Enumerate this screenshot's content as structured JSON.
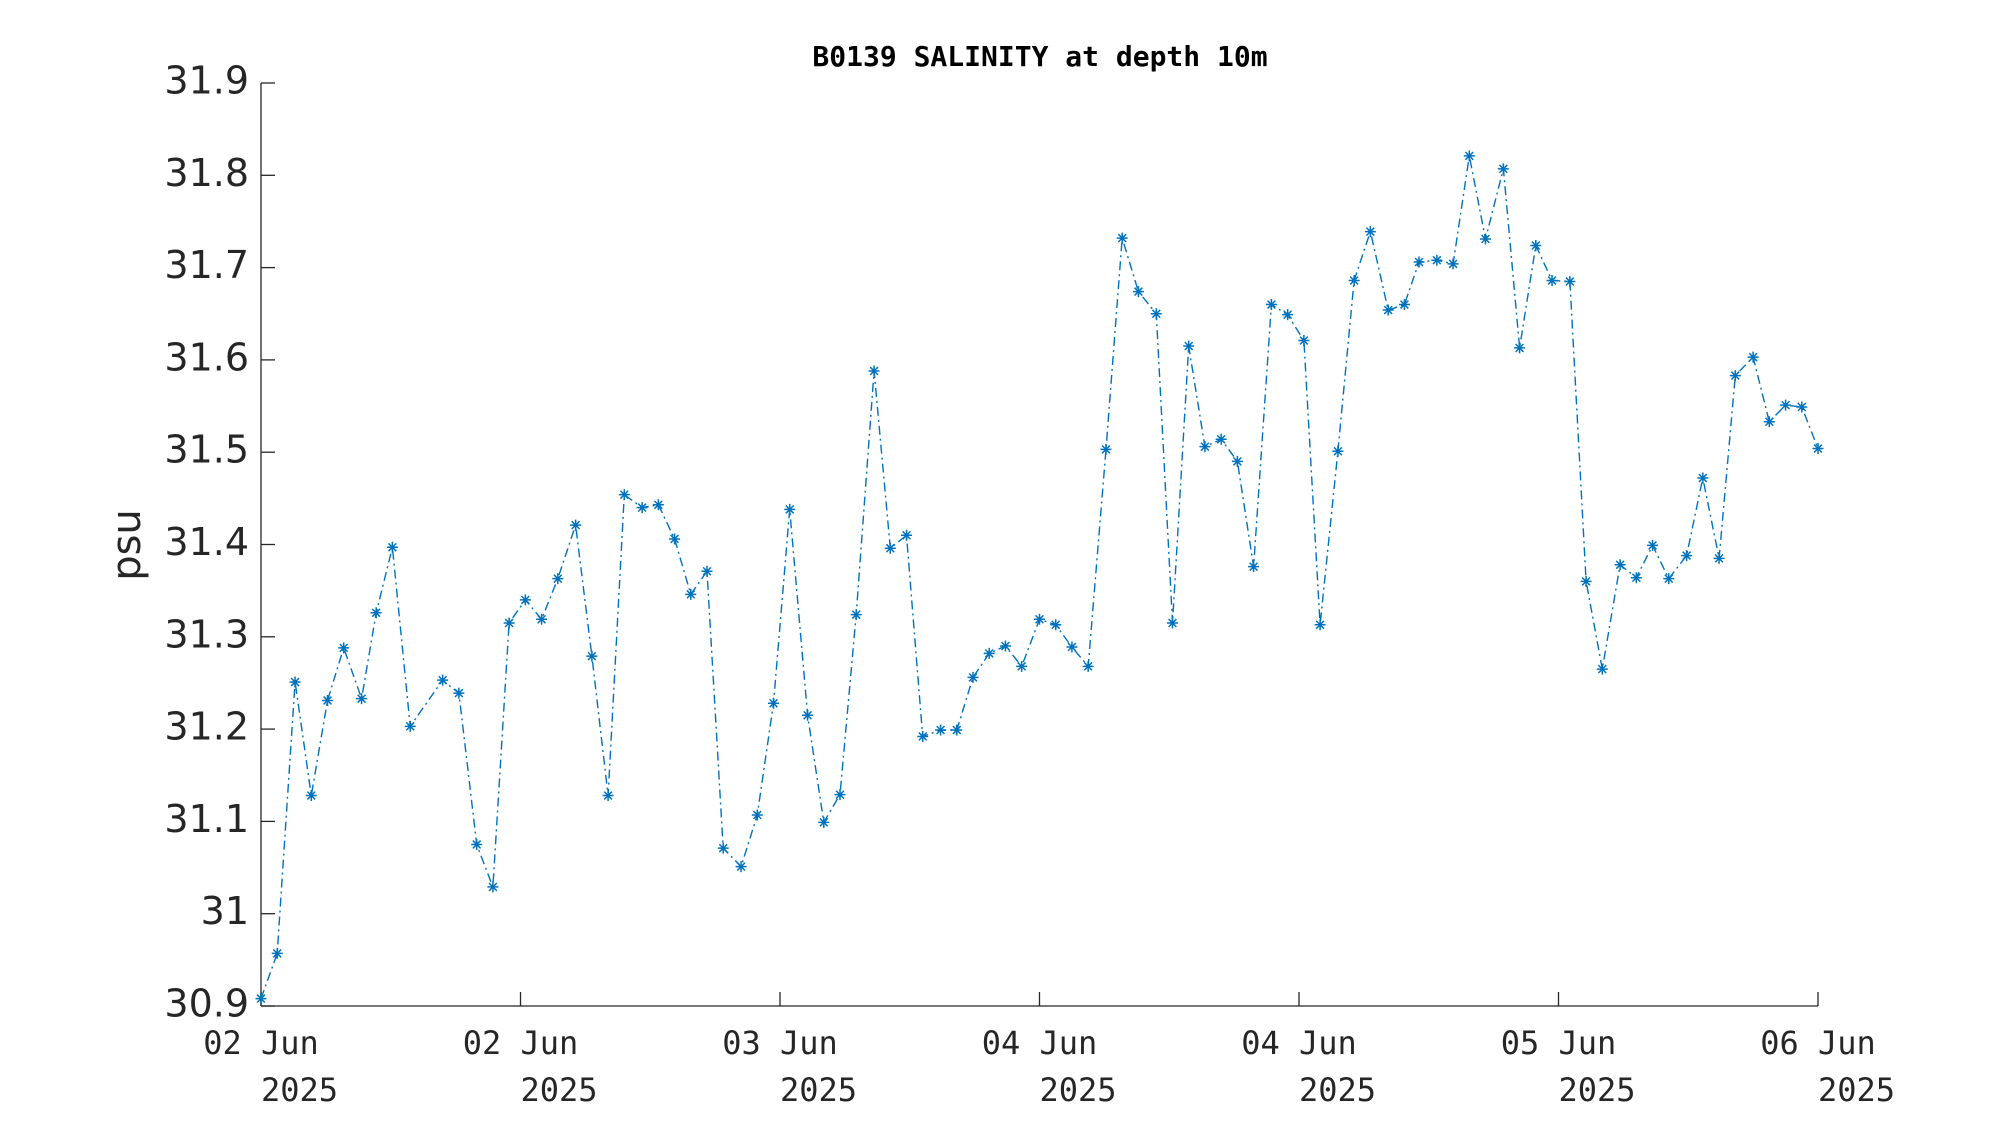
{
  "chart_data": {
    "type": "line",
    "title": "B0139 SALINITY at depth 10m",
    "y_label": "psu",
    "color": "#0072bd",
    "x": [
      0,
      1.0,
      2.1,
      3.1,
      4.1,
      5.1,
      6.2,
      7.1,
      8.1,
      9.2,
      11.2,
      12.2,
      13.3,
      14.3,
      15.3,
      16.3,
      17.3,
      18.3,
      19.4,
      20.4,
      21.4,
      22.4,
      23.5,
      24.5,
      25.5,
      26.5,
      27.5,
      28.5,
      29.6,
      30.6,
      31.6,
      32.6,
      33.7,
      34.7,
      35.7,
      36.7,
      37.8,
      38.8,
      39.8,
      40.8,
      41.9,
      42.9,
      43.9,
      44.9,
      45.9,
      46.9,
      48.0,
      49.0,
      50.0,
      51.0,
      52.1,
      53.1,
      54.1,
      55.2,
      56.2,
      57.2,
      58.2,
      59.2,
      60.2,
      61.2,
      62.3,
      63.3,
      64.3,
      65.3,
      66.4,
      67.4,
      68.4,
      69.5,
      70.5,
      71.4,
      72.5,
      73.5,
      74.5,
      75.5,
      76.6,
      77.6,
      78.6,
      79.6,
      80.7,
      81.7,
      82.7,
      83.8,
      84.8,
      85.8,
      86.8,
      87.9,
      88.9,
      89.9,
      90.9,
      92.0,
      93.0,
      94.0,
      95.0,
      96.0
    ],
    "values": [
      30.908,
      30.957,
      31.251,
      31.128,
      31.231,
      31.288,
      31.233,
      31.326,
      31.397,
      31.203,
      31.253,
      31.239,
      31.075,
      31.029,
      31.315,
      31.34,
      31.319,
      31.363,
      31.421,
      31.279,
      31.128,
      31.454,
      31.44,
      31.443,
      31.406,
      31.346,
      31.371,
      31.071,
      31.051,
      31.107,
      31.228,
      31.438,
      31.215,
      31.099,
      31.129,
      31.324,
      31.588,
      31.396,
      31.41,
      31.192,
      31.199,
      31.199,
      31.256,
      31.282,
      31.29,
      31.268,
      31.319,
      31.313,
      31.289,
      31.268,
      31.503,
      31.732,
      31.674,
      31.65,
      31.315,
      31.615,
      31.506,
      31.514,
      31.49,
      31.376,
      31.66,
      31.649,
      31.621,
      31.313,
      31.501,
      31.686,
      31.739,
      31.654,
      31.66,
      31.706,
      31.708,
      31.704,
      31.821,
      31.731,
      31.807,
      31.613,
      31.724,
      31.686,
      31.685,
      31.36,
      31.265,
      31.378,
      31.364,
      31.399,
      31.363,
      31.388,
      31.472,
      31.385,
      31.583,
      31.603,
      31.533,
      31.551,
      31.549,
      31.504
    ],
    "xlim": [
      0,
      96
    ],
    "xticks": [
      {
        "value": 0,
        "label": [
          "02 Jun",
          "2025"
        ]
      },
      {
        "value": 16,
        "label": [
          "02 Jun",
          "2025"
        ]
      },
      {
        "value": 32,
        "label": [
          "03 Jun",
          "2025"
        ]
      },
      {
        "value": 48,
        "label": [
          "04 Jun",
          "2025"
        ]
      },
      {
        "value": 64,
        "label": [
          "04 Jun",
          "2025"
        ]
      },
      {
        "value": 80,
        "label": [
          "05 Jun",
          "2025"
        ]
      },
      {
        "value": 96,
        "label": [
          "06 Jun",
          "2025"
        ]
      }
    ],
    "ylim": [
      30.9,
      31.9
    ],
    "yticks": [
      30.9,
      31,
      31.1,
      31.2,
      31.3,
      31.4,
      31.5,
      31.6,
      31.7,
      31.8,
      31.9
    ]
  }
}
